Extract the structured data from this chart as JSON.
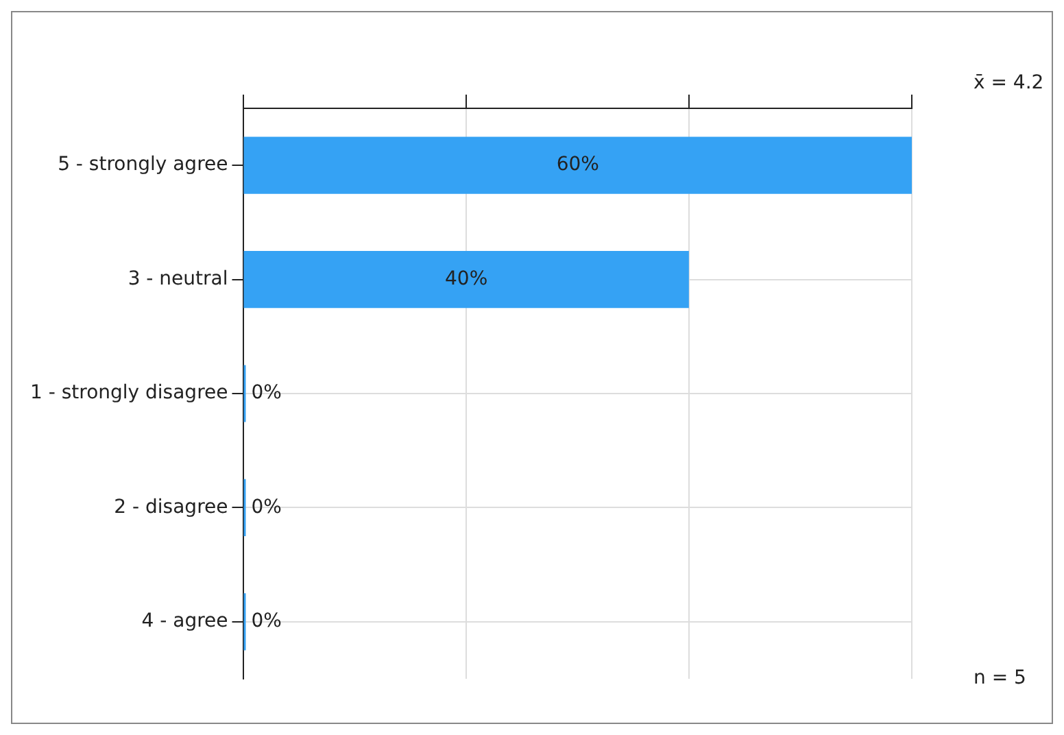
{
  "chart_data": {
    "type": "bar",
    "orientation": "horizontal",
    "categories": [
      "5 - strongly agree",
      "3 - neutral",
      "1 - strongly disagree",
      "2 - disagree",
      "4 - agree"
    ],
    "values": [
      60,
      40,
      0,
      0,
      0
    ],
    "color": "#35a2f4",
    "value_labels": [
      "60%",
      "40%",
      "0%",
      "0%",
      "0%"
    ],
    "xlim": [
      0,
      60
    ],
    "xticks": [
      {
        "value": 0,
        "label": null
      },
      {
        "value": 20,
        "label": null
      },
      {
        "value": 40,
        "label": null
      },
      {
        "value": 60,
        "label": null
      }
    ],
    "tick_labels": "y",
    "grid": true,
    "annotations": [
      "x̄ = 4.2",
      "n = 5"
    ]
  }
}
